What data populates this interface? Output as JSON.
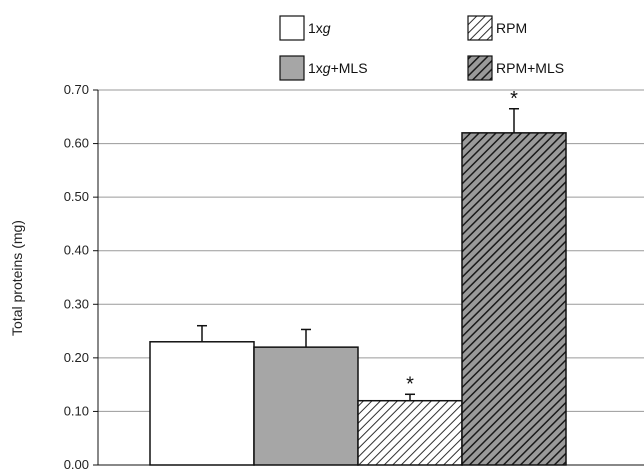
{
  "chart_data": {
    "type": "bar",
    "title": "",
    "xlabel": "",
    "ylabel": "Total proteins (mg)",
    "ylim": [
      0,
      0.7
    ],
    "yticks": [
      "0.00",
      "0.10",
      "0.20",
      "0.30",
      "0.40",
      "0.50",
      "0.60",
      "0.70"
    ],
    "grid": true,
    "legend_position": "top",
    "categories": [
      "1xg",
      "1xg+MLS",
      "RPM",
      "RPM+MLS"
    ],
    "legend": [
      {
        "prefix": "1x",
        "italic": "g",
        "suffix": "",
        "style": "white"
      },
      {
        "prefix": "RPM",
        "italic": "",
        "suffix": "",
        "style": "hatch-light"
      },
      {
        "prefix": "1x",
        "italic": "g",
        "suffix": "+MLS",
        "style": "gray"
      },
      {
        "prefix": "RPM+MLS",
        "italic": "",
        "suffix": "",
        "style": "hatch-dark"
      }
    ],
    "values": [
      0.23,
      0.22,
      0.12,
      0.62
    ],
    "errors": [
      0.03,
      0.033,
      0.012,
      0.045
    ],
    "significance": [
      "",
      "",
      "*",
      "*"
    ],
    "colors": {
      "white": "#ffffff",
      "gray": "#a6a6a6",
      "hatch_light_bg": "#ffffff",
      "hatch_light_line": "#333333",
      "hatch_dark_bg": "#9a9a9a",
      "hatch_dark_line": "#1a1a1a",
      "gridline": "#9a9a9a",
      "edge": "#111111"
    }
  }
}
